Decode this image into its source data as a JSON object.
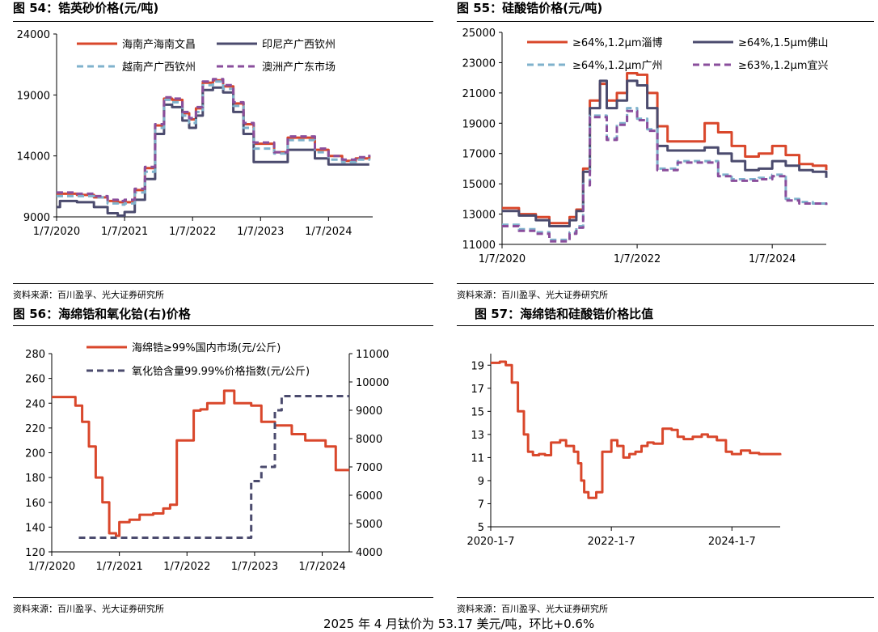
{
  "panels": [
    {
      "title": "图 54：锆英砂价格(元/吨)",
      "source": "资料来源：百川盈孚、光大证券研究所"
    },
    {
      "title": "图 55：硅酸锆价格(元/吨)",
      "source": "资料来源：百川盈孚、光大证券研究所"
    },
    {
      "title": "图 56：海绵锆和氧化铪(右)价格",
      "source": "资料来源：百川盈孚、光大证券研究所"
    },
    {
      "title": "图 57：海绵锆和硅酸锆价格比值",
      "source": "资料来源：百川盈孚、光大证券研究所"
    }
  ],
  "footer": "2025 年 4 月钛价为 53.17 美元/吨，环比+0.6%",
  "chart_data": [
    {
      "type": "line",
      "title": "图 54：锆英砂价格(元/吨)",
      "ylim": [
        9000,
        24000
      ],
      "yticks": [
        "24000",
        "19000",
        "14000",
        "9000"
      ],
      "yticks_values": [
        24000,
        19000,
        14000,
        9000
      ],
      "xlim": [
        2020.0,
        2024.65
      ],
      "xticks": [
        "1/7/2020",
        "1/7/2021",
        "1/7/2022",
        "1/7/2023",
        "1/7/2024"
      ],
      "xticks_values": [
        2020.0,
        2021.0,
        2022.0,
        2023.0,
        2024.0
      ],
      "series": [
        {
          "name": "海南产海南文昌",
          "color": "#d9472b",
          "dash": false,
          "x": [
            2020.0,
            2020.3,
            2020.55,
            2020.75,
            2020.9,
            2021.0,
            2021.15,
            2021.3,
            2021.45,
            2021.58,
            2021.7,
            2021.85,
            2021.95,
            2022.05,
            2022.15,
            2022.3,
            2022.45,
            2022.6,
            2022.75,
            2022.9,
            2023.0,
            2023.2,
            2023.4,
            2023.6,
            2023.8,
            2024.0,
            2024.2,
            2024.4,
            2024.6
          ],
          "y": [
            10900,
            10800,
            10600,
            10300,
            10200,
            10200,
            11200,
            13000,
            16500,
            18700,
            18600,
            17500,
            17000,
            17900,
            20000,
            20200,
            19700,
            18300,
            16600,
            15000,
            15000,
            14300,
            15500,
            15500,
            14500,
            14000,
            13600,
            13800,
            14000
          ]
        },
        {
          "name": "印尼产广西钦州",
          "color": "#4b4b6e",
          "dash": false,
          "x": [
            2020.0,
            2020.05,
            2020.3,
            2020.55,
            2020.75,
            2020.9,
            2021.0,
            2021.15,
            2021.3,
            2021.45,
            2021.58,
            2021.7,
            2021.85,
            2021.95,
            2022.05,
            2022.15,
            2022.3,
            2022.45,
            2022.6,
            2022.75,
            2022.9,
            2023.0,
            2023.2,
            2023.4,
            2023.6,
            2023.8,
            2024.0,
            2024.2,
            2024.4,
            2024.6
          ],
          "y": [
            9800,
            10300,
            10200,
            9800,
            9300,
            9100,
            9400,
            10400,
            12100,
            15800,
            18200,
            18000,
            16900,
            16300,
            17300,
            19400,
            19600,
            19200,
            17600,
            15800,
            13500,
            13500,
            13500,
            14500,
            14500,
            13800,
            13300,
            13300,
            13300,
            13300
          ]
        },
        {
          "name": "越南产广西钦州",
          "color": "#7fb2cc",
          "dash": true,
          "x": [
            2020.0,
            2020.3,
            2020.55,
            2020.75,
            2020.9,
            2021.0,
            2021.15,
            2021.3,
            2021.45,
            2021.58,
            2021.7,
            2021.85,
            2021.95,
            2022.05,
            2022.15,
            2022.3,
            2022.45,
            2022.6,
            2022.75,
            2022.9,
            2023.0,
            2023.2,
            2023.4,
            2023.6,
            2023.8,
            2024.0,
            2024.2,
            2024.4,
            2024.6
          ],
          "y": [
            10700,
            10700,
            10600,
            10100,
            10000,
            10100,
            11000,
            12700,
            16300,
            18600,
            18400,
            17300,
            16700,
            17600,
            19800,
            20100,
            19500,
            18100,
            16300,
            14600,
            14600,
            14200,
            15300,
            15300,
            14300,
            13700,
            13500,
            13700,
            13800
          ]
        },
        {
          "name": "澳洲产广东市场",
          "color": "#8a4e9c",
          "dash": true,
          "x": [
            2020.0,
            2020.3,
            2020.55,
            2020.75,
            2020.9,
            2021.0,
            2021.15,
            2021.3,
            2021.45,
            2021.58,
            2021.7,
            2021.85,
            2021.95,
            2022.05,
            2022.15,
            2022.3,
            2022.45,
            2022.6,
            2022.75,
            2022.9,
            2023.0,
            2023.2,
            2023.4,
            2023.6,
            2023.8,
            2024.0,
            2024.2,
            2024.4,
            2024.6
          ],
          "y": [
            11000,
            10900,
            10700,
            10400,
            10300,
            10400,
            11300,
            13100,
            16600,
            18800,
            18700,
            17600,
            17100,
            18000,
            20100,
            20300,
            19800,
            18400,
            16700,
            15100,
            15100,
            14300,
            15600,
            15600,
            14600,
            14000,
            13700,
            13900,
            14100
          ]
        }
      ]
    },
    {
      "type": "line",
      "title": "图 55：硅酸锆价格(元/吨)",
      "ylim": [
        11000,
        25000
      ],
      "yticks": [
        "25000",
        "23000",
        "21000",
        "19000",
        "17000",
        "15000",
        "13000",
        "11000"
      ],
      "yticks_values": [
        25000,
        23000,
        21000,
        19000,
        17000,
        15000,
        13000,
        11000
      ],
      "xlim": [
        2020.0,
        2024.8
      ],
      "xticks": [
        "1/7/2020",
        "1/7/2022",
        "1/7/2024"
      ],
      "xticks_values": [
        2020.0,
        2022.0,
        2024.0
      ],
      "series": [
        {
          "name": "≥64%,1.2μm淄博",
          "color": "#d9472b",
          "dash": false,
          "x": [
            2020.0,
            2020.25,
            2020.5,
            2020.7,
            2020.85,
            2021.0,
            2021.1,
            2021.2,
            2021.3,
            2021.45,
            2021.55,
            2021.7,
            2021.85,
            2022.0,
            2022.15,
            2022.3,
            2022.45,
            2022.6,
            2022.8,
            2023.0,
            2023.2,
            2023.4,
            2023.6,
            2023.8,
            2024.0,
            2024.2,
            2024.4,
            2024.6,
            2024.8
          ],
          "y": [
            13400,
            13000,
            12800,
            12400,
            12400,
            12800,
            13300,
            16000,
            20500,
            21600,
            20500,
            21000,
            22300,
            22200,
            21000,
            18800,
            17800,
            17800,
            17800,
            19000,
            18400,
            17500,
            16800,
            17000,
            17500,
            16900,
            16300,
            16200,
            15900
          ]
        },
        {
          "name": "≥64%,1.5μm佛山",
          "color": "#4b4b6e",
          "dash": false,
          "x": [
            2020.0,
            2020.25,
            2020.5,
            2020.7,
            2020.85,
            2021.0,
            2021.1,
            2021.2,
            2021.3,
            2021.45,
            2021.55,
            2021.7,
            2021.85,
            2022.0,
            2022.15,
            2022.3,
            2022.45,
            2022.6,
            2022.8,
            2023.0,
            2023.2,
            2023.4,
            2023.6,
            2023.8,
            2024.0,
            2024.2,
            2024.4,
            2024.6,
            2024.8
          ],
          "y": [
            13200,
            12900,
            12600,
            12200,
            12200,
            12600,
            13200,
            15800,
            20000,
            21800,
            20000,
            20500,
            21800,
            21500,
            20000,
            17500,
            17200,
            17200,
            17200,
            17400,
            17000,
            16500,
            15900,
            16000,
            16500,
            16200,
            15900,
            15800,
            15400
          ]
        },
        {
          "name": "≥64%,1.2μm广州",
          "color": "#7fb2cc",
          "dash": true,
          "x": [
            2020.0,
            2020.25,
            2020.5,
            2020.7,
            2020.85,
            2021.0,
            2021.1,
            2021.2,
            2021.3,
            2021.45,
            2021.55,
            2021.7,
            2021.85,
            2022.0,
            2022.15,
            2022.3,
            2022.45,
            2022.6,
            2022.8,
            2023.0,
            2023.2,
            2023.4,
            2023.6,
            2023.8,
            2024.0,
            2024.2,
            2024.4,
            2024.6,
            2024.8
          ],
          "y": [
            12300,
            12000,
            11800,
            11300,
            11300,
            11800,
            12200,
            15000,
            19500,
            19500,
            18000,
            19000,
            20000,
            19300,
            18600,
            16000,
            16000,
            16500,
            16500,
            16500,
            15600,
            15300,
            15300,
            15400,
            15600,
            14000,
            13800,
            13700,
            13500
          ]
        },
        {
          "name": "≥63%,1.2μm宜兴",
          "color": "#8a4e9c",
          "dash": true,
          "x": [
            2020.0,
            2020.25,
            2020.5,
            2020.7,
            2020.85,
            2021.0,
            2021.1,
            2021.2,
            2021.3,
            2021.45,
            2021.55,
            2021.7,
            2021.85,
            2022.0,
            2022.15,
            2022.3,
            2022.45,
            2022.6,
            2022.8,
            2023.0,
            2023.2,
            2023.4,
            2023.6,
            2023.8,
            2024.0,
            2024.2,
            2024.4,
            2024.6,
            2024.8
          ],
          "y": [
            12200,
            11900,
            11700,
            11200,
            11200,
            11700,
            12100,
            14900,
            19400,
            19400,
            17900,
            18900,
            19800,
            19200,
            18500,
            15900,
            15900,
            16400,
            16400,
            16400,
            15500,
            15200,
            15200,
            15300,
            15500,
            13900,
            13700,
            13700,
            13600
          ]
        }
      ]
    },
    {
      "type": "line",
      "title": "图 56：海绵锆和氧化铪(右)价格",
      "ylim": [
        120,
        280
      ],
      "yticks": [
        "280",
        "260",
        "240",
        "220",
        "200",
        "180",
        "160",
        "140",
        "120"
      ],
      "yticks_values": [
        280,
        260,
        240,
        220,
        200,
        180,
        160,
        140,
        120
      ],
      "y2lim": [
        4000,
        11000
      ],
      "y2ticks": [
        "11000",
        "10000",
        "9000",
        "8000",
        "7000",
        "6000",
        "5000",
        "4000"
      ],
      "y2ticks_values": [
        11000,
        10000,
        9000,
        8000,
        7000,
        6000,
        5000,
        4000
      ],
      "xlim": [
        2020.0,
        2024.4
      ],
      "xticks": [
        "1/7/2020",
        "1/7/2021",
        "1/7/2022",
        "1/7/2023",
        "1/7/2024"
      ],
      "xticks_values": [
        2020.0,
        2021.0,
        2022.0,
        2023.0,
        2024.0
      ],
      "series": [
        {
          "name": "海绵锆≥99%国内市场(元/公斤)",
          "color": "#d9472b",
          "dash": false,
          "axis": "left",
          "x": [
            2020.0,
            2020.25,
            2020.35,
            2020.45,
            2020.55,
            2020.65,
            2020.75,
            2020.85,
            2020.95,
            2021.0,
            2021.15,
            2021.3,
            2021.5,
            2021.65,
            2021.75,
            2021.85,
            2022.1,
            2022.2,
            2022.3,
            2022.55,
            2022.7,
            2022.95,
            2023.1,
            2023.3,
            2023.55,
            2023.75,
            2024.05,
            2024.2,
            2024.4
          ],
          "y": [
            245,
            245,
            238,
            225,
            205,
            180,
            160,
            135,
            133,
            144,
            146,
            150,
            151,
            155,
            158,
            210,
            234,
            235,
            240,
            250,
            240,
            238,
            225,
            222,
            215,
            210,
            205,
            186,
            186
          ]
        },
        {
          "name": "氧化铪含量99.99%价格指数(元/公斤)",
          "color": "#4b4b6e",
          "dash": true,
          "axis": "right",
          "x": [
            2020.4,
            2021.0,
            2021.5,
            2022.0,
            2022.45,
            2022.55,
            2022.7,
            2022.95,
            2023.1,
            2023.2,
            2023.3,
            2023.4,
            2024.4
          ],
          "y": [
            4500,
            4500,
            4500,
            4500,
            4500,
            4500,
            4500,
            6500,
            7000,
            7000,
            9000,
            9500,
            9500
          ]
        }
      ]
    },
    {
      "type": "line",
      "title": "图 57：海绵锆和硅酸锆价格比值",
      "ylim": [
        5,
        20
      ],
      "yticks": [
        "19",
        "17",
        "15",
        "13",
        "11",
        "9",
        "7",
        "5"
      ],
      "yticks_values": [
        19,
        17,
        15,
        13,
        11,
        9,
        7,
        5
      ],
      "xlim": [
        2020.0,
        2024.8
      ],
      "xticks": [
        "2020-1-7",
        "2022-1-7",
        "2024-1-7"
      ],
      "xticks_values": [
        2020.0,
        2022.0,
        2024.0
      ],
      "series": [
        {
          "name": "比值",
          "color": "#d9472b",
          "dash": false,
          "x": [
            2020.0,
            2020.15,
            2020.25,
            2020.35,
            2020.45,
            2020.55,
            2020.62,
            2020.7,
            2020.8,
            2020.9,
            2021.0,
            2021.15,
            2021.25,
            2021.32,
            2021.38,
            2021.45,
            2021.5,
            2021.55,
            2021.62,
            2021.75,
            2021.85,
            2022.0,
            2022.1,
            2022.2,
            2022.3,
            2022.4,
            2022.5,
            2022.6,
            2022.7,
            2022.85,
            2023.0,
            2023.1,
            2023.2,
            2023.35,
            2023.5,
            2023.6,
            2023.75,
            2023.9,
            2024.0,
            2024.15,
            2024.3,
            2024.45,
            2024.6,
            2024.8
          ],
          "y": [
            19.2,
            19.3,
            19.0,
            17.5,
            15.0,
            13.0,
            11.5,
            11.2,
            11.3,
            11.2,
            12.3,
            12.5,
            12.0,
            12.0,
            11.5,
            10.5,
            9.0,
            8.0,
            7.5,
            8.0,
            11.5,
            12.5,
            12.0,
            11.0,
            11.3,
            11.5,
            12.0,
            12.3,
            12.2,
            13.5,
            13.4,
            12.8,
            12.6,
            12.8,
            13.0,
            12.8,
            12.5,
            11.5,
            11.3,
            11.6,
            11.4,
            11.3,
            11.3,
            11.2
          ]
        }
      ]
    }
  ]
}
